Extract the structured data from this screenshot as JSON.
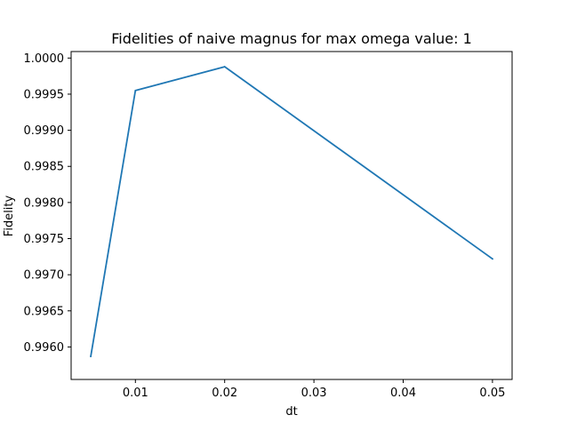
{
  "chart_data": {
    "type": "line",
    "title": "Fidelities of naive magnus for max omega value: 1",
    "xlabel": "dt",
    "ylabel": "Fidelity",
    "xlim": [
      0.0028,
      0.0522
    ],
    "ylim": [
      0.99555,
      1.00009
    ],
    "xticks": [
      0.01,
      0.02,
      0.03,
      0.04,
      0.05
    ],
    "xtick_labels": [
      "0.01",
      "0.02",
      "0.03",
      "0.04",
      "0.05"
    ],
    "yticks": [
      0.996,
      0.9965,
      0.997,
      0.9975,
      0.998,
      0.9985,
      0.999,
      0.9995,
      1.0
    ],
    "ytick_labels": [
      "0.9960",
      "0.9965",
      "0.9970",
      "0.9975",
      "0.9980",
      "0.9985",
      "0.9990",
      "0.9995",
      "1.0000"
    ],
    "grid": false,
    "series": [
      {
        "color": "#1f77b4",
        "x": [
          0.005,
          0.01,
          0.02,
          0.05
        ],
        "y": [
          0.99587,
          0.99955,
          0.99988,
          0.99722
        ]
      }
    ]
  }
}
